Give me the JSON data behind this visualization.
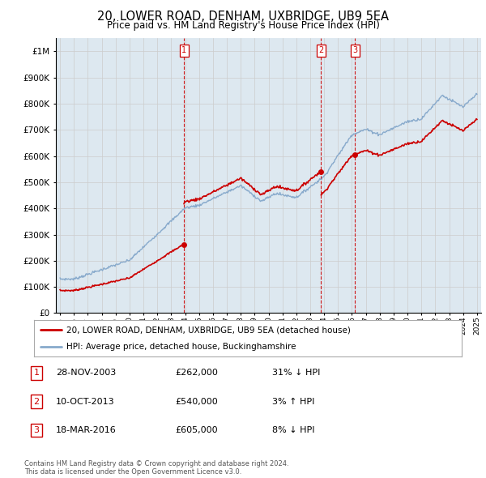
{
  "title": "20, LOWER ROAD, DENHAM, UXBRIDGE, UB9 5EA",
  "subtitle": "Price paid vs. HM Land Registry's House Price Index (HPI)",
  "ytick_values": [
    0,
    100000,
    200000,
    300000,
    400000,
    500000,
    600000,
    700000,
    800000,
    900000,
    1000000
  ],
  "ytick_labels": [
    "£0",
    "£100K",
    "£200K",
    "£300K",
    "£400K",
    "£500K",
    "£600K",
    "£700K",
    "£800K",
    "£900K",
    "£1M"
  ],
  "ylim": [
    0,
    1050000
  ],
  "xlim_start": 1994.7,
  "xlim_end": 2025.3,
  "sale_dates": [
    2003.91,
    2013.78,
    2016.21
  ],
  "sale_prices": [
    262000,
    540000,
    605000
  ],
  "sale_labels": [
    "1",
    "2",
    "3"
  ],
  "vline_color": "#cc0000",
  "hpi_color": "#88aacc",
  "sale_color": "#cc0000",
  "marker_color": "#cc0000",
  "grid_color": "#cccccc",
  "legend_entries": [
    "20, LOWER ROAD, DENHAM, UXBRIDGE, UB9 5EA (detached house)",
    "HPI: Average price, detached house, Buckinghamshire"
  ],
  "table_rows": [
    {
      "label": "1",
      "date": "28-NOV-2003",
      "price": "£262,000",
      "change": "31% ↓ HPI"
    },
    {
      "label": "2",
      "date": "10-OCT-2013",
      "price": "£540,000",
      "change": "3% ↑ HPI"
    },
    {
      "label": "3",
      "date": "18-MAR-2016",
      "price": "£605,000",
      "change": "8% ↓ HPI"
    }
  ],
  "footnote": "Contains HM Land Registry data © Crown copyright and database right 2024.\nThis data is licensed under the Open Government Licence v3.0.",
  "background_color": "#ffffff",
  "plot_bg_color": "#dde8f0"
}
